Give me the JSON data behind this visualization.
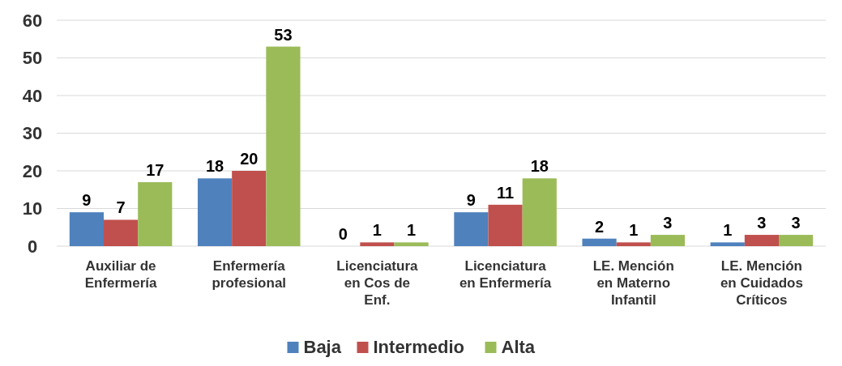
{
  "chart_data": {
    "type": "bar",
    "categories": [
      "Auxiliar de Enfermería",
      "Enfermería profesional",
      "Licenciatura en Cos de Enf.",
      "Licenciatura en Enfermería",
      "LE. Mención en Materno Infantil",
      "LE. Mención en Cuidados Críticos"
    ],
    "series": [
      {
        "name": "Baja",
        "color": "#4f81bd",
        "values": [
          9,
          18,
          0,
          9,
          2,
          1
        ]
      },
      {
        "name": "Intermedio",
        "color": "#c0504d",
        "values": [
          7,
          20,
          1,
          11,
          1,
          3
        ]
      },
      {
        "name": "Alta",
        "color": "#9bbb59",
        "values": [
          17,
          53,
          1,
          18,
          3,
          3
        ]
      }
    ],
    "ylim": [
      0,
      60
    ],
    "yticks": [
      0,
      10,
      20,
      30,
      40,
      50,
      60
    ],
    "grid": "y",
    "legend": "bottom",
    "data_labels": true
  }
}
